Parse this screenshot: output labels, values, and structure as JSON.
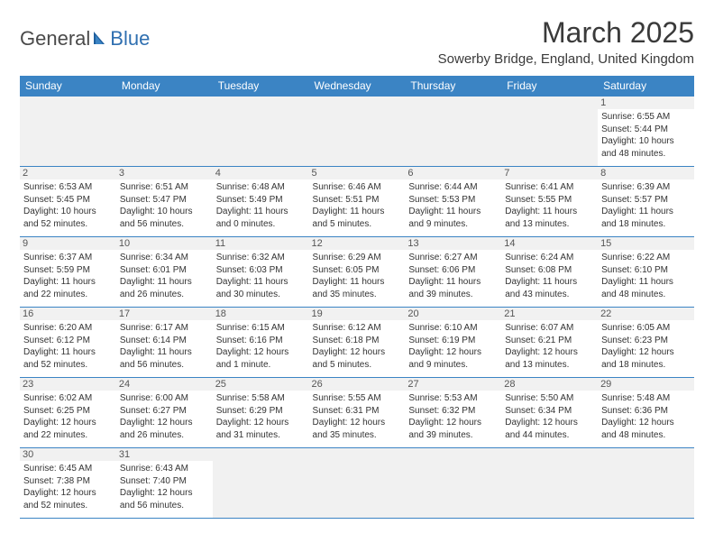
{
  "logo": {
    "part1": "General",
    "part2": "Blue"
  },
  "title": "March 2025",
  "location": "Sowerby Bridge, England, United Kingdom",
  "colors": {
    "header_bg": "#3b84c4",
    "header_fg": "#ffffff",
    "daynum_bg": "#f1f1f1",
    "border": "#3b84c4",
    "logo_accent": "#2f6fb0"
  },
  "weekdays": [
    "Sunday",
    "Monday",
    "Tuesday",
    "Wednesday",
    "Thursday",
    "Friday",
    "Saturday"
  ],
  "weeks": [
    [
      null,
      null,
      null,
      null,
      null,
      null,
      {
        "n": "1",
        "sr": "Sunrise: 6:55 AM",
        "ss": "Sunset: 5:44 PM",
        "d1": "Daylight: 10 hours",
        "d2": "and 48 minutes."
      }
    ],
    [
      {
        "n": "2",
        "sr": "Sunrise: 6:53 AM",
        "ss": "Sunset: 5:45 PM",
        "d1": "Daylight: 10 hours",
        "d2": "and 52 minutes."
      },
      {
        "n": "3",
        "sr": "Sunrise: 6:51 AM",
        "ss": "Sunset: 5:47 PM",
        "d1": "Daylight: 10 hours",
        "d2": "and 56 minutes."
      },
      {
        "n": "4",
        "sr": "Sunrise: 6:48 AM",
        "ss": "Sunset: 5:49 PM",
        "d1": "Daylight: 11 hours",
        "d2": "and 0 minutes."
      },
      {
        "n": "5",
        "sr": "Sunrise: 6:46 AM",
        "ss": "Sunset: 5:51 PM",
        "d1": "Daylight: 11 hours",
        "d2": "and 5 minutes."
      },
      {
        "n": "6",
        "sr": "Sunrise: 6:44 AM",
        "ss": "Sunset: 5:53 PM",
        "d1": "Daylight: 11 hours",
        "d2": "and 9 minutes."
      },
      {
        "n": "7",
        "sr": "Sunrise: 6:41 AM",
        "ss": "Sunset: 5:55 PM",
        "d1": "Daylight: 11 hours",
        "d2": "and 13 minutes."
      },
      {
        "n": "8",
        "sr": "Sunrise: 6:39 AM",
        "ss": "Sunset: 5:57 PM",
        "d1": "Daylight: 11 hours",
        "d2": "and 18 minutes."
      }
    ],
    [
      {
        "n": "9",
        "sr": "Sunrise: 6:37 AM",
        "ss": "Sunset: 5:59 PM",
        "d1": "Daylight: 11 hours",
        "d2": "and 22 minutes."
      },
      {
        "n": "10",
        "sr": "Sunrise: 6:34 AM",
        "ss": "Sunset: 6:01 PM",
        "d1": "Daylight: 11 hours",
        "d2": "and 26 minutes."
      },
      {
        "n": "11",
        "sr": "Sunrise: 6:32 AM",
        "ss": "Sunset: 6:03 PM",
        "d1": "Daylight: 11 hours",
        "d2": "and 30 minutes."
      },
      {
        "n": "12",
        "sr": "Sunrise: 6:29 AM",
        "ss": "Sunset: 6:05 PM",
        "d1": "Daylight: 11 hours",
        "d2": "and 35 minutes."
      },
      {
        "n": "13",
        "sr": "Sunrise: 6:27 AM",
        "ss": "Sunset: 6:06 PM",
        "d1": "Daylight: 11 hours",
        "d2": "and 39 minutes."
      },
      {
        "n": "14",
        "sr": "Sunrise: 6:24 AM",
        "ss": "Sunset: 6:08 PM",
        "d1": "Daylight: 11 hours",
        "d2": "and 43 minutes."
      },
      {
        "n": "15",
        "sr": "Sunrise: 6:22 AM",
        "ss": "Sunset: 6:10 PM",
        "d1": "Daylight: 11 hours",
        "d2": "and 48 minutes."
      }
    ],
    [
      {
        "n": "16",
        "sr": "Sunrise: 6:20 AM",
        "ss": "Sunset: 6:12 PM",
        "d1": "Daylight: 11 hours",
        "d2": "and 52 minutes."
      },
      {
        "n": "17",
        "sr": "Sunrise: 6:17 AM",
        "ss": "Sunset: 6:14 PM",
        "d1": "Daylight: 11 hours",
        "d2": "and 56 minutes."
      },
      {
        "n": "18",
        "sr": "Sunrise: 6:15 AM",
        "ss": "Sunset: 6:16 PM",
        "d1": "Daylight: 12 hours",
        "d2": "and 1 minute."
      },
      {
        "n": "19",
        "sr": "Sunrise: 6:12 AM",
        "ss": "Sunset: 6:18 PM",
        "d1": "Daylight: 12 hours",
        "d2": "and 5 minutes."
      },
      {
        "n": "20",
        "sr": "Sunrise: 6:10 AM",
        "ss": "Sunset: 6:19 PM",
        "d1": "Daylight: 12 hours",
        "d2": "and 9 minutes."
      },
      {
        "n": "21",
        "sr": "Sunrise: 6:07 AM",
        "ss": "Sunset: 6:21 PM",
        "d1": "Daylight: 12 hours",
        "d2": "and 13 minutes."
      },
      {
        "n": "22",
        "sr": "Sunrise: 6:05 AM",
        "ss": "Sunset: 6:23 PM",
        "d1": "Daylight: 12 hours",
        "d2": "and 18 minutes."
      }
    ],
    [
      {
        "n": "23",
        "sr": "Sunrise: 6:02 AM",
        "ss": "Sunset: 6:25 PM",
        "d1": "Daylight: 12 hours",
        "d2": "and 22 minutes."
      },
      {
        "n": "24",
        "sr": "Sunrise: 6:00 AM",
        "ss": "Sunset: 6:27 PM",
        "d1": "Daylight: 12 hours",
        "d2": "and 26 minutes."
      },
      {
        "n": "25",
        "sr": "Sunrise: 5:58 AM",
        "ss": "Sunset: 6:29 PM",
        "d1": "Daylight: 12 hours",
        "d2": "and 31 minutes."
      },
      {
        "n": "26",
        "sr": "Sunrise: 5:55 AM",
        "ss": "Sunset: 6:31 PM",
        "d1": "Daylight: 12 hours",
        "d2": "and 35 minutes."
      },
      {
        "n": "27",
        "sr": "Sunrise: 5:53 AM",
        "ss": "Sunset: 6:32 PM",
        "d1": "Daylight: 12 hours",
        "d2": "and 39 minutes."
      },
      {
        "n": "28",
        "sr": "Sunrise: 5:50 AM",
        "ss": "Sunset: 6:34 PM",
        "d1": "Daylight: 12 hours",
        "d2": "and 44 minutes."
      },
      {
        "n": "29",
        "sr": "Sunrise: 5:48 AM",
        "ss": "Sunset: 6:36 PM",
        "d1": "Daylight: 12 hours",
        "d2": "and 48 minutes."
      }
    ],
    [
      {
        "n": "30",
        "sr": "Sunrise: 6:45 AM",
        "ss": "Sunset: 7:38 PM",
        "d1": "Daylight: 12 hours",
        "d2": "and 52 minutes."
      },
      {
        "n": "31",
        "sr": "Sunrise: 6:43 AM",
        "ss": "Sunset: 7:40 PM",
        "d1": "Daylight: 12 hours",
        "d2": "and 56 minutes."
      },
      null,
      null,
      null,
      null,
      null
    ]
  ]
}
